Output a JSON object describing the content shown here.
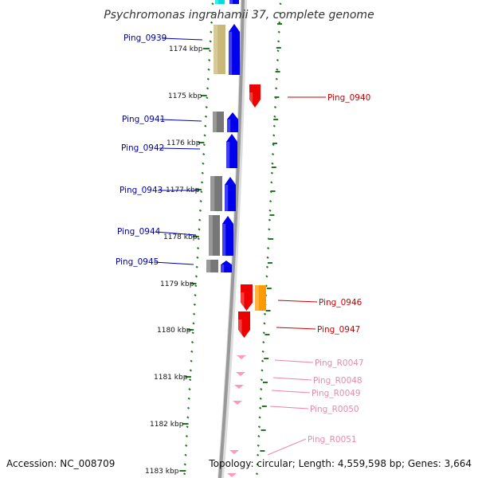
{
  "title": "Psychromonas ingrahamii 37, complete genome",
  "accession": "Accession: NC_008709",
  "topology": "Topology: circular; Length: 4,559,598 bp; Genes: 3,664",
  "colors": {
    "left_label": "#0000aa",
    "right_label": "#cc0000",
    "rna_label": "#ee88aa",
    "blue_gene": "#0000ee",
    "red_gene": "#ee0000",
    "orange_gene": "#ff9900",
    "gray_gene": "#777777",
    "tan_gene": "#c8b87a",
    "cyan_gene": "#00dddd",
    "pink_gene": "#ff99bb",
    "ticks": "#227722",
    "backbone": "#999999"
  },
  "kbp_labels": [
    {
      "text": "1174 kbp"
    },
    {
      "text": "1175 kbp"
    },
    {
      "text": "1176 kbp"
    },
    {
      "text": "1177 kbp"
    },
    {
      "text": "1178 kbp"
    },
    {
      "text": "1179 kbp"
    },
    {
      "text": "1180 kbp"
    },
    {
      "text": "1181 kbp"
    },
    {
      "text": "1182 kbp"
    },
    {
      "text": "1183 kbp"
    }
  ],
  "gene_labels_left": [
    "Ping_0939",
    "Ping_0941",
    "Ping_0942",
    "Ping_0943",
    "Ping_0944",
    "Ping_0945"
  ],
  "gene_labels_right": [
    "Ping_0940",
    "Ping_0946",
    "Ping_0947"
  ],
  "rna_labels": [
    "Ping_R0047",
    "Ping_R0048",
    "Ping_R0049",
    "Ping_R0050",
    "Ping_R0051"
  ]
}
